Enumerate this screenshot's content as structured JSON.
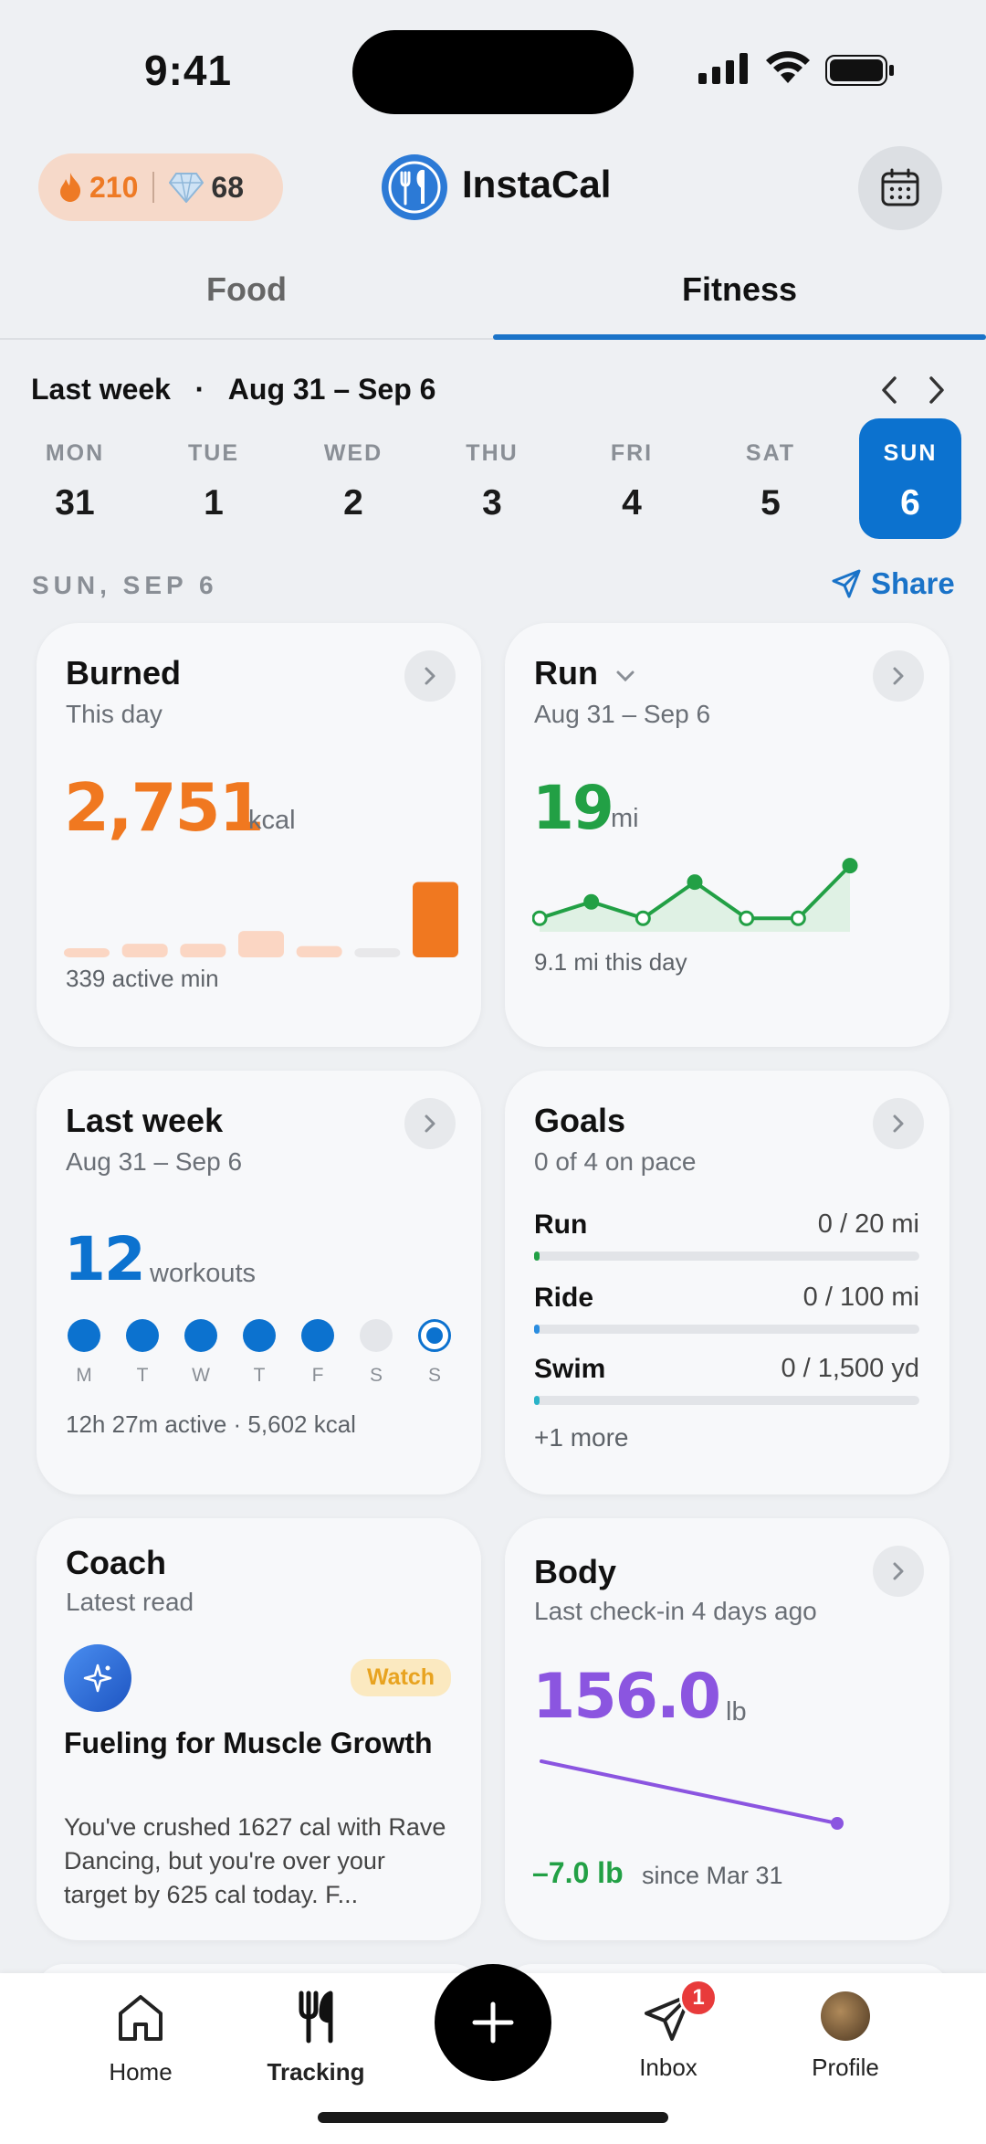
{
  "status": {
    "time": "9:41"
  },
  "header": {
    "streak": "210",
    "gems": "68",
    "brand": "InstaCal",
    "icons": [
      "flame-icon",
      "gem-icon",
      "fork-knife-logo-icon",
      "calendar-icon"
    ]
  },
  "tabs": {
    "food": "Food",
    "fitness": "Fitness"
  },
  "range": {
    "label": "Last week",
    "dates": "Aug 31 – Sep 6"
  },
  "week": [
    {
      "name": "MON",
      "num": "31"
    },
    {
      "name": "TUE",
      "num": "1"
    },
    {
      "name": "WED",
      "num": "2"
    },
    {
      "name": "THU",
      "num": "3"
    },
    {
      "name": "FRI",
      "num": "4"
    },
    {
      "name": "SAT",
      "num": "5"
    },
    {
      "name": "SUN",
      "num": "6"
    }
  ],
  "section": {
    "label": "SUN, SEP 6",
    "share": "Share"
  },
  "burned": {
    "title": "Burned",
    "sub": "This day",
    "value": "2,751",
    "unit": "kcal",
    "foot": "339 active min",
    "bars": [
      0.12,
      0.18,
      0.18,
      0.35,
      0.15,
      0.08,
      1.0
    ]
  },
  "run": {
    "title": "Run",
    "sub": "Aug 31 – Sep 6",
    "value": "19",
    "unit": "mi",
    "foot": "9.1 mi this day",
    "points": [
      0.15,
      0.4,
      0.15,
      0.7,
      0.15,
      0.15,
      0.95
    ]
  },
  "lastweek": {
    "title": "Last week",
    "sub": "Aug 31 – Sep 6",
    "value": "12",
    "unit": "workouts",
    "days": [
      "M",
      "T",
      "W",
      "T",
      "F",
      "S",
      "S"
    ],
    "foot": "12h 27m active · 5,602 kcal"
  },
  "goals": {
    "title": "Goals",
    "sub": "0 of 4 on pace",
    "items": [
      {
        "label": "Run",
        "value": "0 / 20 mi",
        "color": "#22a045"
      },
      {
        "label": "Ride",
        "value": "0 / 100 mi",
        "color": "#2a8de0"
      },
      {
        "label": "Swim",
        "value": "0 / 1,500 yd",
        "color": "#2ab3c8"
      }
    ],
    "more": "+1 more"
  },
  "coach": {
    "title": "Coach",
    "sub": "Latest read",
    "tag": "Watch",
    "headline": "Fueling for Muscle Growth",
    "body": "You've crushed 1627 cal with Rave Dancing, but you're over your target by 625 cal today. F..."
  },
  "body": {
    "title": "Body",
    "sub": "Last check-in 4 days ago",
    "value": "156.0",
    "unit": "lb",
    "delta": "–7.0 lb",
    "delta_suffix": "since Mar 31"
  },
  "tabbar": {
    "home": "Home",
    "tracking": "Tracking",
    "inbox": "Inbox",
    "profile": "Profile",
    "inbox_badge": "1"
  },
  "colors": {
    "accent": "#0c72cf",
    "burn": "#f07820",
    "run": "#22a045",
    "body": "#8b55e0"
  }
}
